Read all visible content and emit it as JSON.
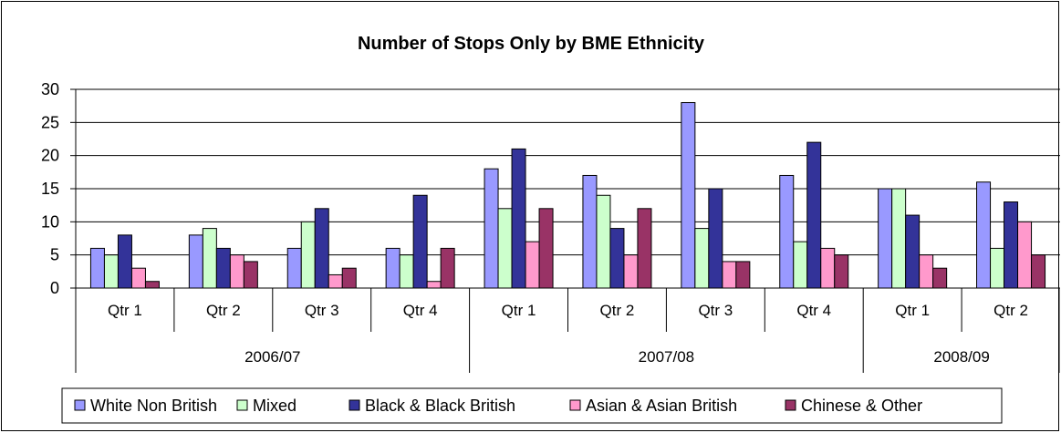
{
  "chart_data": {
    "type": "bar",
    "title": "Number of Stops Only by BME Ethnicity",
    "xlabel": "",
    "ylabel": "",
    "ylim": [
      0,
      30
    ],
    "yticks": [
      "0",
      "5",
      "10",
      "15",
      "20",
      "25",
      "30"
    ],
    "grid": true,
    "legend_position": "bottom",
    "categories": [
      "Qtr 1",
      "Qtr 2",
      "Qtr 3",
      "Qtr 4",
      "Qtr 1",
      "Qtr 2",
      "Qtr 3",
      "Qtr 4",
      "Qtr 1",
      "Qtr 2"
    ],
    "groups": [
      {
        "label": "2006/07",
        "span": 4
      },
      {
        "label": "2007/08",
        "span": 4
      },
      {
        "label": "2008/09",
        "span": 2
      }
    ],
    "series": [
      {
        "name": "White Non British",
        "color": "#9999ff",
        "values": [
          6,
          8,
          6,
          6,
          18,
          17,
          28,
          17,
          15,
          16
        ]
      },
      {
        "name": "Mixed",
        "color": "#ccffcc",
        "values": [
          5,
          9,
          10,
          5,
          12,
          14,
          9,
          7,
          15,
          6
        ]
      },
      {
        "name": "Black & Black British",
        "color": "#333399",
        "values": [
          8,
          6,
          12,
          14,
          21,
          9,
          15,
          22,
          11,
          13
        ]
      },
      {
        "name": "Asian & Asian British",
        "color": "#ff99cc",
        "values": [
          3,
          5,
          2,
          1,
          7,
          5,
          4,
          6,
          5,
          10
        ]
      },
      {
        "name": "Chinese & Other",
        "color": "#993366",
        "values": [
          1,
          4,
          3,
          6,
          12,
          12,
          4,
          5,
          3,
          5
        ]
      }
    ]
  }
}
